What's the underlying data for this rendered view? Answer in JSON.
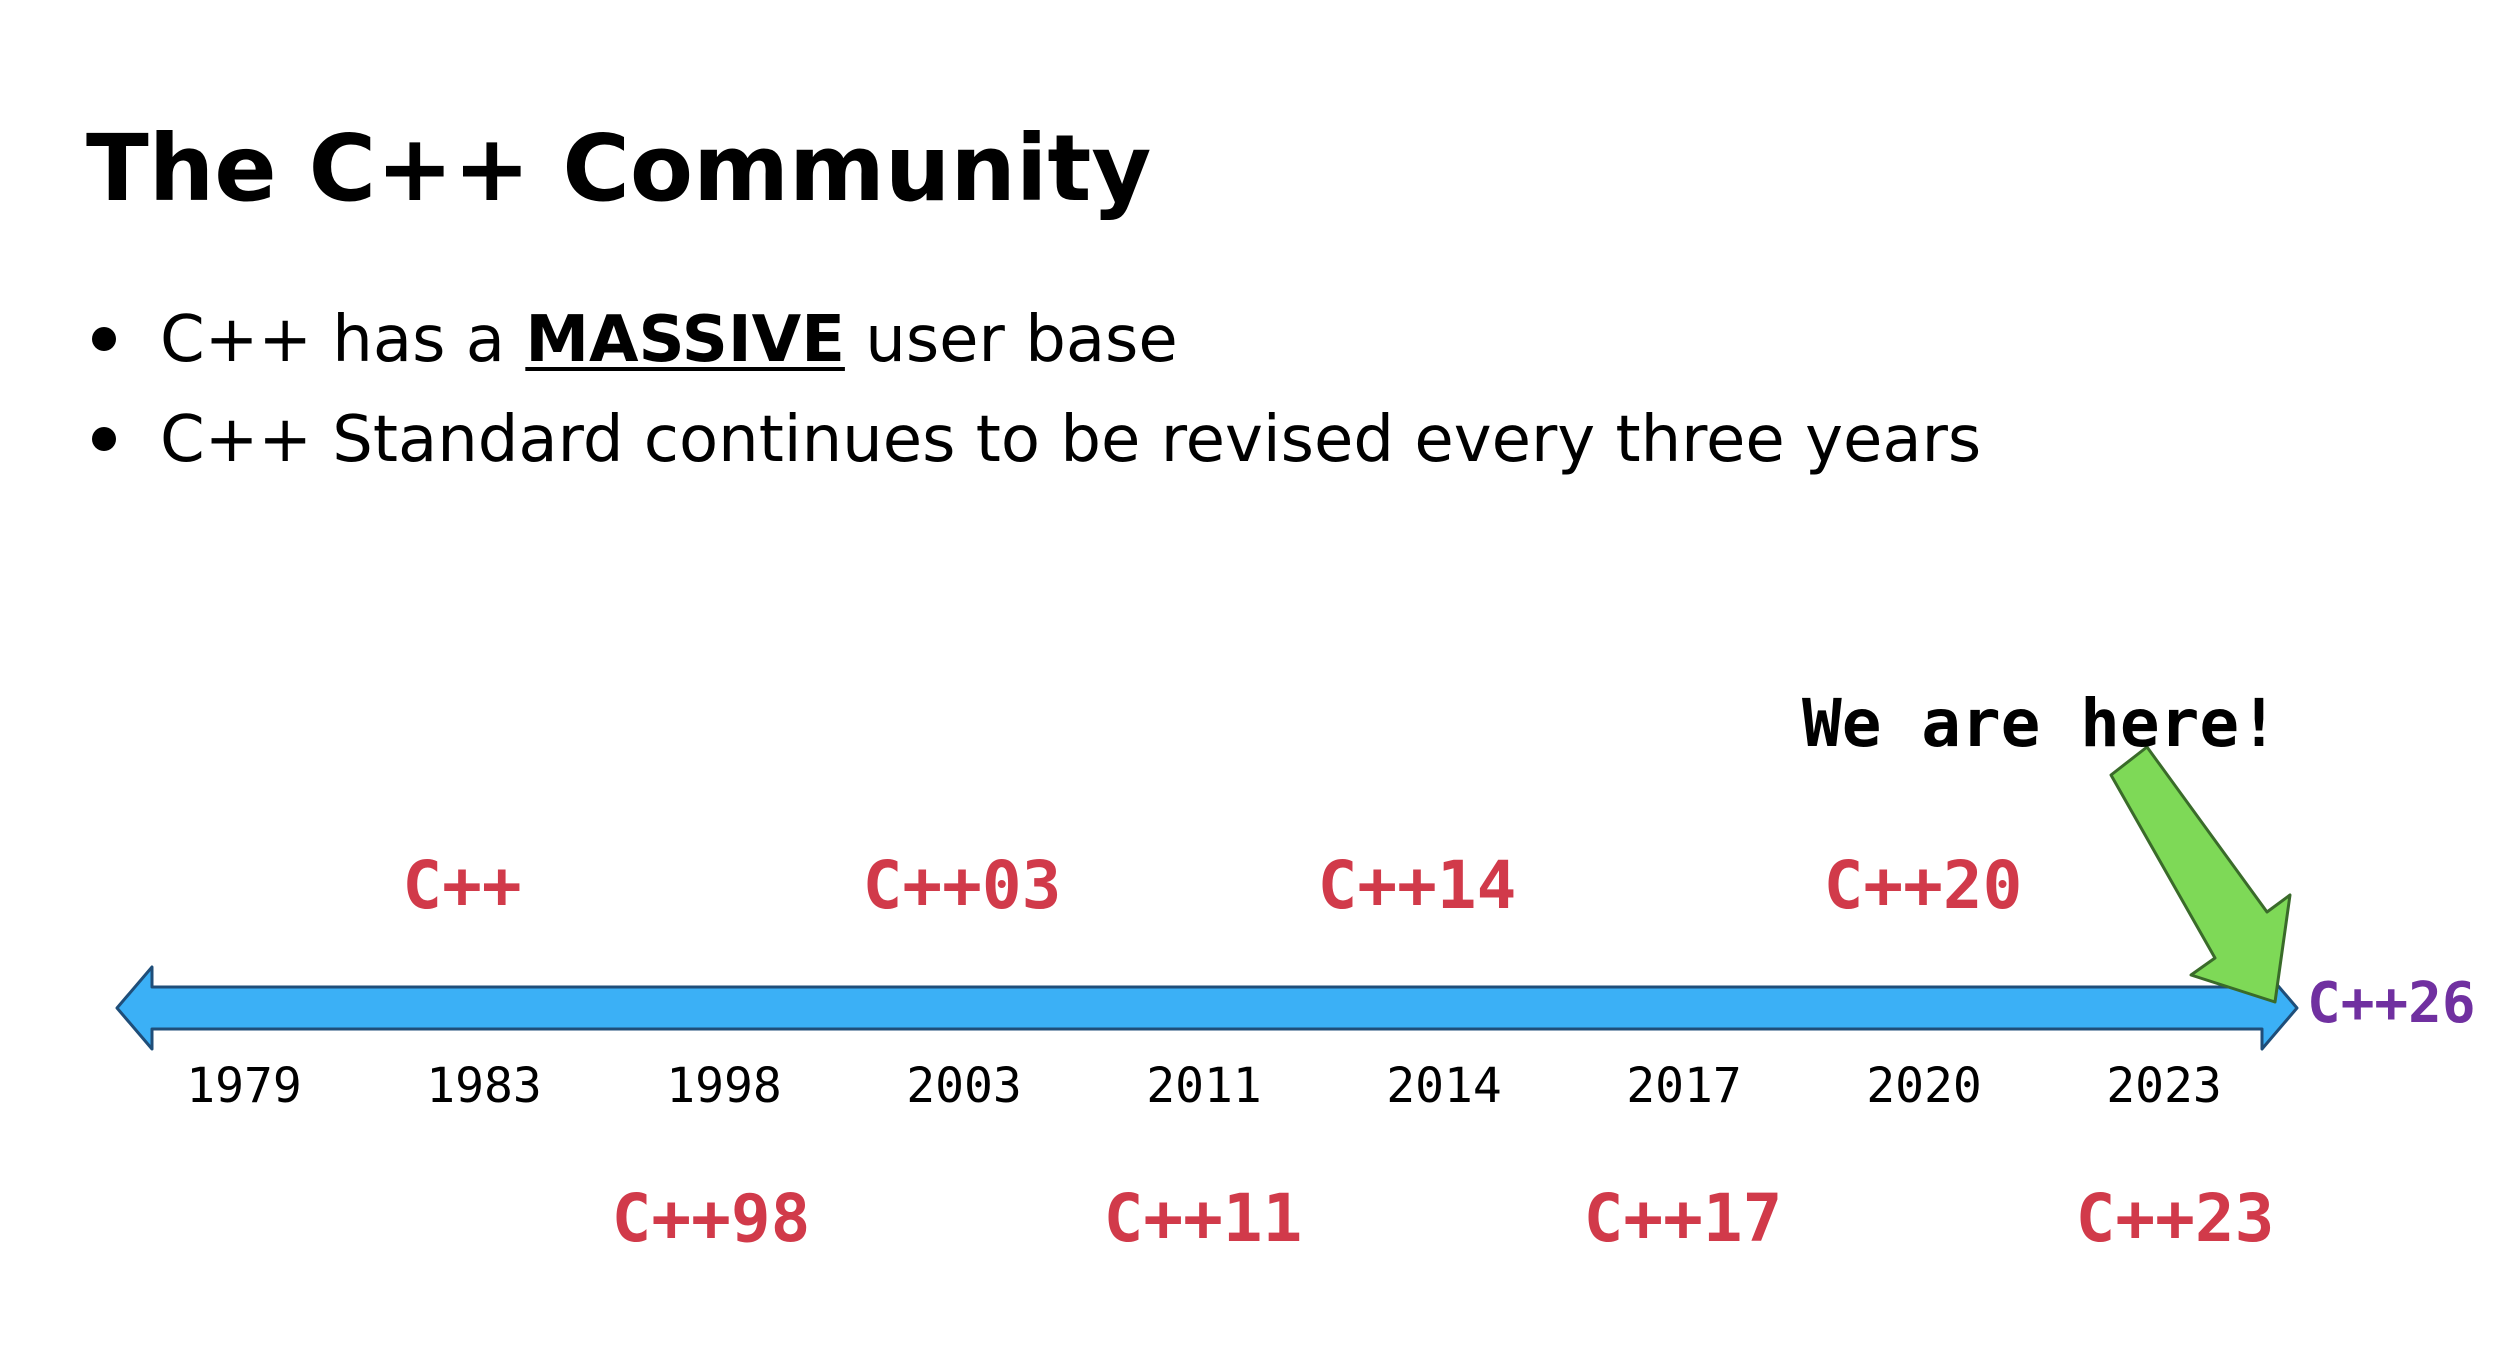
{
  "slide": {
    "title": "The C++ Community",
    "bullets": [
      {
        "before": "C++ has a ",
        "emphasis": "MASSIVE",
        "after": " user base"
      },
      {
        "before": "C++ Standard continues to be revised every three years",
        "emphasis": "",
        "after": ""
      }
    ]
  },
  "timeline": {
    "years": [
      "1979",
      "1983",
      "1998",
      "2003",
      "2011",
      "2014",
      "2017",
      "2020",
      "2023"
    ],
    "versions_above": [
      "C++",
      "C++03",
      "C++14",
      "C++20"
    ],
    "versions_below": [
      "C++98",
      "C++11",
      "C++17",
      "C++23"
    ],
    "next_version": "C++26",
    "marker_text": "We are here!",
    "colors": {
      "axis_fill": "#3BB0F6",
      "axis_stroke": "#1F4E79",
      "version_text": "#D13A4A",
      "next_version_text": "#7030A0",
      "marker_fill": "#7ED957",
      "marker_stroke": "#3A6B2A",
      "year_text": "#000000"
    }
  }
}
